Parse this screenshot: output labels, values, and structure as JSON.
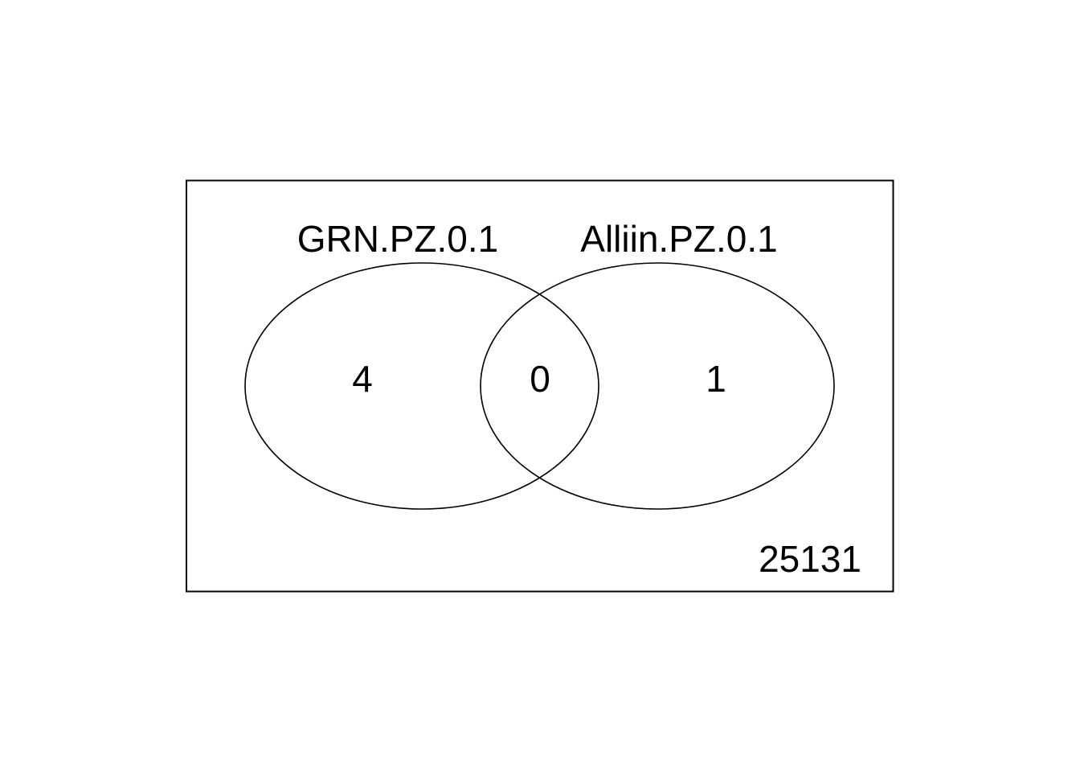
{
  "diagram": {
    "type": "venn",
    "sets": [
      {
        "name": "GRN.PZ.0.1",
        "only_count": "4"
      },
      {
        "name": "Alliin.PZ.0.1",
        "only_count": "1"
      }
    ],
    "intersection_count": "0",
    "outside_count": "25131",
    "colors": {
      "stroke": "#000000",
      "background": "#ffffff"
    }
  }
}
